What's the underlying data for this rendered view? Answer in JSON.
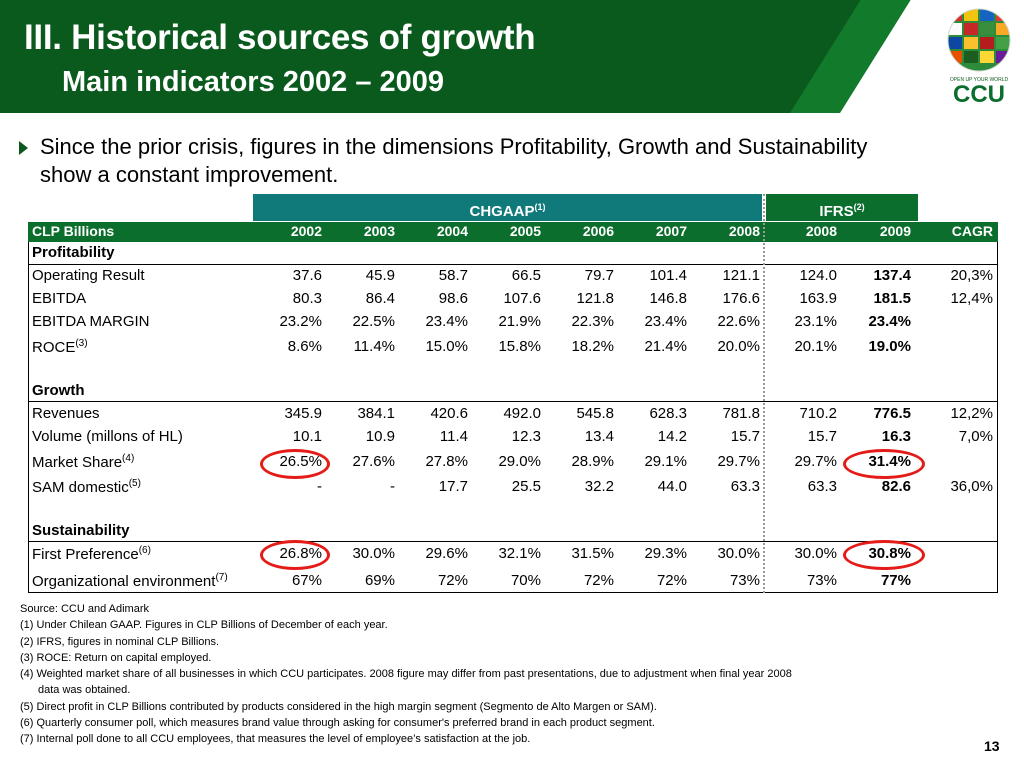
{
  "header": {
    "title": "III. Historical sources of growth",
    "subtitle": "Main indicators 2002 – 2009"
  },
  "logo": {
    "tagline": "OPEN UP YOUR WORLD",
    "wordmark": "CCU"
  },
  "bullet": "Since the prior crisis, figures in the dimensions Profitability, Growth and Sustainability show a constant improvement.",
  "table": {
    "group_chgaap": "CHGAAP",
    "group_chgaap_note": "(1)",
    "group_ifrs": "IFRS",
    "group_ifrs_note": "(2)",
    "columns": [
      "CLP Billions",
      "2002",
      "2003",
      "2004",
      "2005",
      "2006",
      "2007",
      "2008",
      "2008",
      "2009",
      "CAGR"
    ],
    "sections": {
      "profitability": "Profitability",
      "growth": "Growth",
      "sustainability": "Sustainability"
    },
    "rows": [
      {
        "label": "Operating Result",
        "note": "",
        "values": [
          "37.6",
          "45.9",
          "58.7",
          "66.5",
          "79.7",
          "101.4",
          "121.1",
          "124.0",
          "137.4",
          "20,3%"
        ]
      },
      {
        "label": "EBITDA",
        "note": "",
        "values": [
          "80.3",
          "86.4",
          "98.6",
          "107.6",
          "121.8",
          "146.8",
          "176.6",
          "163.9",
          "181.5",
          "12,4%"
        ]
      },
      {
        "label": "EBITDA MARGIN",
        "note": "",
        "values": [
          "23.2%",
          "22.5%",
          "23.4%",
          "21.9%",
          "22.3%",
          "23.4%",
          "22.6%",
          "23.1%",
          "23.4%",
          ""
        ]
      },
      {
        "label": "ROCE",
        "note": "(3)",
        "values": [
          "8.6%",
          "11.4%",
          "15.0%",
          "15.8%",
          "18.2%",
          "21.4%",
          "20.0%",
          "20.1%",
          "19.0%",
          ""
        ]
      },
      {
        "label": "Revenues",
        "note": "",
        "values": [
          "345.9",
          "384.1",
          "420.6",
          "492.0",
          "545.8",
          "628.3",
          "781.8",
          "710.2",
          "776.5",
          "12,2%"
        ]
      },
      {
        "label": "Volume (millons of HL)",
        "note": "",
        "values": [
          "10.1",
          "10.9",
          "11.4",
          "12.3",
          "13.4",
          "14.2",
          "15.7",
          "15.7",
          "16.3",
          "7,0%"
        ]
      },
      {
        "label": "Market Share",
        "note": "(4)",
        "values": [
          "26.5%",
          "27.6%",
          "27.8%",
          "29.0%",
          "28.9%",
          "29.1%",
          "29.7%",
          "29.7%",
          "31.4%",
          ""
        ]
      },
      {
        "label": "SAM domestic",
        "note": "(5)",
        "values": [
          "-",
          "-",
          "17.7",
          "25.5",
          "32.2",
          "44.0",
          "63.3",
          "63.3",
          "82.6",
          "36,0%"
        ]
      },
      {
        "label": "First Preference",
        "note": "(6)",
        "values": [
          "26.8%",
          "30.0%",
          "29.6%",
          "32.1%",
          "31.5%",
          "29.3%",
          "30.0%",
          "30.0%",
          "30.8%",
          ""
        ]
      },
      {
        "label": "Organizational environment",
        "note": "(7)",
        "values": [
          "67%",
          "69%",
          "72%",
          "70%",
          "72%",
          "72%",
          "73%",
          "73%",
          "77%",
          ""
        ]
      }
    ]
  },
  "footnotes": [
    "Source: CCU and Adimark",
    "(1) Under Chilean GAAP. Figures in CLP Billions of December of each year.",
    "(2) IFRS, figures in nominal CLP Billions.",
    "(3) ROCE: Return on capital employed.",
    "(4) Weighted market share of all businesses in which CCU participates. 2008 figure may differ from past presentations, due to adjustment when final year 2008",
    "data was obtained.",
    "(5) Direct profit in CLP Billions contributed by products considered in the high margin segment (Segmento de Alto Margen or SAM).",
    "(6) Quarterly consumer poll, which measures brand value through asking for consumer's preferred brand in each product segment.",
    "(7) Internal poll done to all CCU employees, that measures the level of employee’s satisfaction at the job."
  ],
  "page_number": "13",
  "colors": {
    "header_green": "#0b5a1d",
    "table_header_green": "#0b6e2c",
    "chgaap_teal": "#0f7a79",
    "highlight_ring": "#e41b17"
  }
}
